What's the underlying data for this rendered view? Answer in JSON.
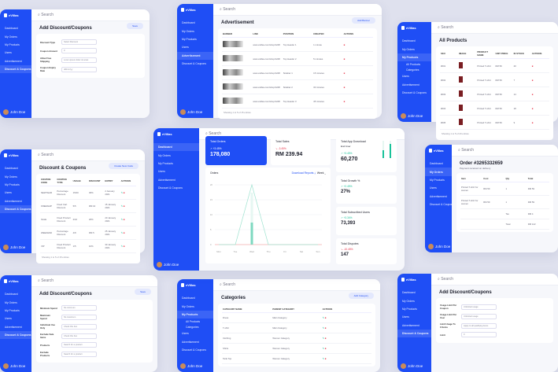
{
  "colors": {
    "accent": "#1f4ef5",
    "positive": "#19c29a",
    "negative": "#e8344a",
    "background": "#dfe1ee"
  },
  "brand": "eVillas",
  "search_placeholder": "Search",
  "user": "John Doe",
  "nav": [
    "Dashboard",
    "My Orders",
    "My Products",
    "Users",
    "Advertisement",
    "Discount & Coupons"
  ],
  "products_sub": [
    "All Products",
    "Categories"
  ],
  "dashboard": {
    "tiles": [
      {
        "label": "Total Orders",
        "change": "+3.45%",
        "trend": "up",
        "value": "178,080"
      },
      {
        "label": "Total Sales",
        "change": "-3.45%",
        "trend": "down",
        "value": "RM 239.94"
      },
      {
        "label": "Total App Download",
        "filter": "End User",
        "change": "+3.45%",
        "trend": "up",
        "value": "60,270"
      },
      {
        "label": "Total Growth %",
        "change": "+2.45%",
        "trend": "up",
        "value": "27%"
      },
      {
        "label": "Total Subscribed Users",
        "change": "+3.34%",
        "trend": "up",
        "value": "73,393"
      },
      {
        "label": "Total Disputes",
        "change": "-10.45%",
        "trend": "down",
        "value": "147"
      }
    ],
    "chart": {
      "title": "Orders",
      "download": "Download Reports",
      "period": "Week",
      "days": [
        "Mon",
        "Tue",
        "Wed",
        "Thu",
        "Fri",
        "Sat",
        "Sun"
      ],
      "yticks": [
        "20",
        "15",
        "10",
        "5",
        "0"
      ],
      "orders": [
        0,
        0,
        20,
        0,
        0,
        0,
        0
      ]
    }
  },
  "panels": [
    {
      "id": "p-add1",
      "title": "Add Discount/Coupons",
      "button": "Save",
      "active": 5,
      "kind": "form",
      "fields": [
        [
          "Discount Type",
          "Select Discount"
        ],
        [
          "Coupon Amount",
          "0"
        ],
        [
          "Allow Free Shipping",
          "Lorem ipsum dolor sit amet"
        ],
        [
          "Coupon Expiry Date",
          "dd/mm/yy"
        ]
      ]
    },
    {
      "id": "p-ads",
      "title": "Advertisement",
      "button": "Add Banner",
      "active": 4,
      "kind": "table",
      "columns": [
        "BANNER",
        "LINK",
        "POSITION",
        "CREATED",
        "ACTIONS"
      ],
      "rows": [
        [
          "#img",
          "www.evillas.com/shop/1248",
          "Top Header 1",
          "1 minute",
          "#del"
        ],
        [
          "#img",
          "www.evillas.com/shop/1248",
          "Top Header 2",
          "5 minutes",
          "#del"
        ],
        [
          "#img",
          "www.evillas.com/shop/1248",
          "Sidebar 1",
          "15 minutes",
          "#del"
        ],
        [
          "#img",
          "www.evillas.com/shop/1248",
          "Sidebar 2",
          "30 minutes",
          "#del"
        ],
        [
          "#img",
          "www.evillas.com/shop/1248",
          "Top Header 3",
          "45 minutes",
          "#del"
        ]
      ],
      "footer": "Showing 1 to 5 of 15 entries"
    },
    {
      "id": "p-prod",
      "title": "All Products",
      "active": 2,
      "kind": "table",
      "sub": true,
      "columns": [
        "SKU",
        "IMAGE",
        "PRODUCT NAME",
        "UNIT PRICE",
        "IN STOCK",
        "ACTIONS"
      ],
      "rows": [
        [
          "#001",
          "#pimg",
          "Printed T-shirt",
          "RM 59",
          "20",
          "#del"
        ],
        [
          "#002",
          "#pimg",
          "Printed T-shirt",
          "RM 59",
          "7",
          "#del"
        ],
        [
          "#003",
          "#pimg",
          "Printed T-shirt",
          "RM 59",
          "14",
          "#del"
        ],
        [
          "#004",
          "#pimg",
          "Printed T-shirt",
          "RM 59",
          "18",
          "#del"
        ],
        [
          "#005",
          "#pimg",
          "Printed T-shirt",
          "RM 59",
          "9",
          "#del"
        ]
      ],
      "footer": "Showing 1 to 5 of 20 entries"
    },
    {
      "id": "p-disc",
      "title": "Discount & Coupons",
      "button": "Create New Code",
      "active": 5,
      "kind": "table",
      "columns": [
        "COUPON CODE",
        "COUPON TYPE",
        "USAGE",
        "DISCOUNT",
        "EXPIRY",
        "ACTIONS"
      ],
      "rows": [
        [
          "NEWYEAR",
          "Percentage Discount",
          "15/20",
          "30%",
          "2 January 2021",
          "#both"
        ],
        [
          "FREESHIP",
          "Fixed Cart Discount",
          "5/5",
          "RM 10",
          "15 January 2021",
          "#both"
        ],
        [
          "SALE",
          "Fixed Product Discount",
          "2/10",
          "20%",
          "20 January 2021",
          "#both"
        ],
        [
          "WEEKEND",
          "Percentage Discount",
          "4/8",
          "RM 5",
          "25 January 2021",
          "#both"
        ],
        [
          "VIP",
          "Fixed Product Discount",
          "1/5",
          "10%",
          "30 January 2021",
          "#both"
        ]
      ],
      "footer": "Showing 1 to 5 of 15 entries"
    },
    {
      "id": "p-order",
      "title": "Order #3265332659",
      "subtitle": "Payment received on delivery",
      "active": 1,
      "kind": "table",
      "columns": [
        "Item",
        "Cost",
        "Qty",
        "Total"
      ],
      "rows": [
        [
          "Printed T-shirt for women",
          "RM 59",
          "1",
          "RM 59"
        ],
        [
          "Printed T-shirt for women",
          "RM 59",
          "1",
          "RM 59"
        ],
        [
          "",
          "",
          "Tax",
          "RM 4"
        ],
        [
          "",
          "",
          "Total",
          "RM 122"
        ]
      ]
    },
    {
      "id": "p-add2",
      "title": "Add Discount/Coupons",
      "button": "Save",
      "active": 5,
      "kind": "form",
      "fields": [
        [
          "Minimum Spend",
          "No minimum"
        ],
        [
          "Maximum Spend",
          "No maximum"
        ],
        [
          "Individual Use Only",
          "Check this box"
        ],
        [
          "Exclude Sale Items",
          "Check this box"
        ],
        [
          "Products",
          "Search for a product"
        ],
        [
          "Exclude Products",
          "Search for a product"
        ]
      ]
    },
    {
      "id": "p-cat",
      "title": "Categories",
      "button": "Add Category",
      "active": 2,
      "kind": "table",
      "sub": true,
      "columns": [
        "CATEGORY NAME",
        "PARENT CATEGORY",
        "ACTIONS"
      ],
      "rows": [
        [
          "Dress",
          "Main Category",
          "#both"
        ],
        [
          "T-shirt",
          "Main Category",
          "#both"
        ],
        [
          "Clothing",
          "Women Category",
          "#both"
        ],
        [
          "Shirts",
          "Women Category",
          "#both"
        ],
        [
          "Tank Top",
          "Women Category",
          "#both"
        ]
      ]
    },
    {
      "id": "p-add3",
      "title": "Add Discount/Coupons",
      "active": 5,
      "kind": "form",
      "fields": [
        [
          "Usage Limit Per Coupon",
          "Unlimited usage"
        ],
        [
          "Usage Limit Per User",
          "Unlimited usage"
        ],
        [
          "Limit Usage To X Items",
          "Apply to all qualifying items"
        ],
        [
          "Limit",
          "0"
        ]
      ]
    }
  ]
}
